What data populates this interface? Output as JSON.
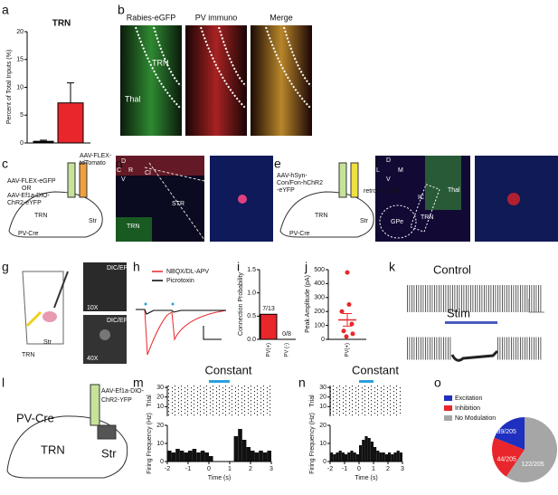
{
  "panel_letters": [
    "a",
    "b",
    "c",
    "d",
    "e",
    "f",
    "g",
    "h",
    "i",
    "j",
    "k",
    "l",
    "m",
    "n",
    "o"
  ],
  "a": {
    "title": "TRN",
    "y_label": "Percent of Total Inputs (%)",
    "ylim": [
      0,
      20
    ],
    "yticks": [
      0,
      5,
      10,
      15,
      20
    ],
    "values": [
      0.3,
      7.2
    ],
    "errors": [
      0.2,
      3.6
    ],
    "colors": [
      "#000000",
      "#e8262b"
    ]
  },
  "b": {
    "headers": [
      "Rabies-eGFP",
      "PV immuno",
      "Merge"
    ],
    "header_colors": [
      "#2a9d3a",
      "#e0262b",
      "#111111"
    ],
    "labels": [
      "TRN",
      "Thal"
    ]
  },
  "c": {
    "texts": [
      "AAV-FLEX-eGFP",
      "OR",
      "AAV-Ef1a-DIO-",
      "ChR2-eYFP",
      "AAV-FLEX-",
      "tdTomato",
      "TRN",
      "Str",
      "PV-Cre"
    ]
  },
  "d": {
    "texts": [
      "D",
      "V",
      "C",
      "R",
      "CI",
      "TRN",
      "STR"
    ]
  },
  "e": {
    "texts": [
      "AAV-hSyn-",
      "Con/Fon-hChR2",
      "-eYFP",
      "retroAAV-Flp",
      "TRN",
      "Str",
      "PV-Cre"
    ]
  },
  "f": {
    "texts": [
      "D",
      "V",
      "L",
      "M",
      "Thal",
      "IC",
      "GPe",
      "TRN"
    ]
  },
  "g": {
    "texts": [
      "DIC/EPI",
      "10X",
      "DIC/EPI",
      "40X",
      "TRN",
      "Str"
    ]
  },
  "h": {
    "legend": [
      {
        "name": "NBQX/DL-APV",
        "color": "#e8262b"
      },
      {
        "name": "Picrotoxin",
        "color": "#000000"
      }
    ]
  },
  "i": {
    "y_label": "Connection Probability",
    "categories": [
      "PV(+)",
      "PV (-)"
    ],
    "values": [
      0.54,
      0
    ],
    "value_labels": [
      "7/13",
      "0/8"
    ],
    "color": "#e8262b",
    "ylim": [
      0,
      1.5
    ],
    "yticks": [
      {
        "value": 0,
        "label": "0.0"
      },
      {
        "value": 0.5,
        "label": "0.5"
      },
      {
        "value": 1,
        "label": "1.0"
      },
      {
        "value": 1.5,
        "label": "1.5"
      }
    ]
  },
  "j": {
    "y_label": "Peak Amplitude (pA)",
    "category": "PV(+)",
    "values": [
      480,
      250,
      200,
      110,
      60,
      40,
      20
    ],
    "mean": 140,
    "sem": 45,
    "color": "#e8262b",
    "ylim": [
      0,
      500
    ],
    "yticks": [
      0,
      100,
      200,
      300,
      400,
      500
    ]
  },
  "k": {
    "texts": [
      "Control",
      "Stim"
    ]
  },
  "l": {
    "texts": [
      "AAV-Ef1a-DIO-",
      "ChR2-YFP",
      "PV-Cre",
      "TRN",
      "Str"
    ]
  },
  "m": {
    "title": "Constant",
    "raster_label": "Trial",
    "raster_ylim": [
      0,
      32
    ],
    "raster_ticks": [
      10,
      20,
      30
    ],
    "hist_label": "Firing Frequency (Hz)",
    "hist_ylim": [
      0,
      20
    ],
    "hist_ticks": [
      0,
      10,
      20
    ],
    "x_label": "Time (s)",
    "xlim": [
      -2,
      3
    ],
    "xticks": [
      -2,
      -1,
      0,
      1,
      2,
      3
    ],
    "stim": [
      0,
      1
    ],
    "bins": [
      -2,
      -1.8,
      -1.6,
      -1.4,
      -1.2,
      -1,
      -0.8,
      -0.6,
      -0.4,
      -0.2,
      0,
      0.2,
      0.4,
      0.6,
      0.8,
      1,
      1.2,
      1.4,
      1.6,
      1.8,
      2,
      2.2,
      2.4,
      2.6,
      2.8,
      3
    ],
    "counts": [
      6,
      5,
      7,
      6,
      5,
      6,
      7,
      5,
      6,
      5,
      3,
      0,
      0,
      0,
      0,
      0,
      14,
      18,
      12,
      8,
      6,
      5,
      6,
      5,
      6
    ]
  },
  "n": {
    "title": "Constant",
    "raster_label": "Trial",
    "raster_ylim": [
      0,
      32
    ],
    "raster_ticks": [
      10,
      20,
      30
    ],
    "hist_label": "Firing Frequency (Hz)",
    "hist_ylim": [
      0,
      20
    ],
    "hist_ticks": [
      0,
      10,
      20
    ],
    "x_label": "Time (s)",
    "xlim": [
      -2,
      3
    ],
    "xticks": [
      -2,
      -1,
      0,
      1,
      2,
      3
    ],
    "stim": [
      0,
      1
    ],
    "bins": [
      -2,
      -1.8,
      -1.6,
      -1.4,
      -1.2,
      -1,
      -0.8,
      -0.6,
      -0.4,
      -0.2,
      0,
      0.2,
      0.4,
      0.6,
      0.8,
      1,
      1.2,
      1.4,
      1.6,
      1.8,
      2,
      2.2,
      2.4,
      2.6,
      2.8,
      3
    ],
    "counts": [
      5,
      4,
      5,
      6,
      5,
      4,
      5,
      6,
      5,
      4,
      9,
      12,
      14,
      13,
      11,
      8,
      6,
      5,
      5,
      4,
      5,
      4,
      5,
      6,
      5
    ]
  },
  "o": {
    "type": "pie",
    "series": [
      {
        "name": "Excitation",
        "color": "#1f2fbf",
        "value": 39,
        "value_label": "39/205"
      },
      {
        "name": "Inhibition",
        "color": "#e8262b",
        "value": 44,
        "value_label": "44/205"
      },
      {
        "name": "No Modulation",
        "color": "#a6a6a6",
        "value": 122,
        "value_label": "122/205"
      }
    ]
  }
}
